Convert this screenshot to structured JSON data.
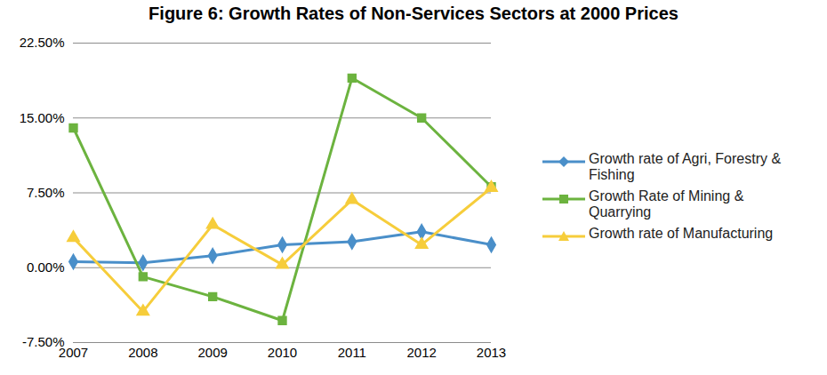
{
  "chart_data": {
    "type": "line",
    "title": "Figure 6: Growth Rates of Non-Services Sectors at 2000 Prices",
    "x": [
      2007,
      2008,
      2009,
      2010,
      2011,
      2012,
      2013
    ],
    "xlim": [
      2007,
      2013
    ],
    "xticks": [
      2007,
      2008,
      2009,
      2010,
      2011,
      2012,
      2013
    ],
    "ylim": [
      -7.5,
      22.5
    ],
    "yticks": [
      {
        "value": -7.5,
        "label": "-7.50%"
      },
      {
        "value": 0,
        "label": "0.00%"
      },
      {
        "value": 7.5,
        "label": "7.50%"
      },
      {
        "value": 15,
        "label": "15.00%"
      },
      {
        "value": 22.5,
        "label": "22.50%"
      }
    ],
    "grid": true,
    "legend": "right",
    "series": [
      {
        "name": "Growth rate of Agri, Forestry & Fishing",
        "color": "#4a8fc9",
        "marker": "diamond",
        "values": [
          0.6,
          0.5,
          1.2,
          2.3,
          2.6,
          3.6,
          2.3
        ]
      },
      {
        "name": "Growth Rate of Mining & Quarrying",
        "color": "#6cb33f",
        "marker": "square",
        "values": [
          14.0,
          -0.9,
          -2.9,
          -5.3,
          19.0,
          15.0,
          8.1
        ]
      },
      {
        "name": "Growth rate of Manufacturing",
        "color": "#f6cd3b",
        "marker": "triangle",
        "values": [
          3.0,
          -4.4,
          4.3,
          0.3,
          6.8,
          2.3,
          8.0
        ]
      }
    ]
  }
}
